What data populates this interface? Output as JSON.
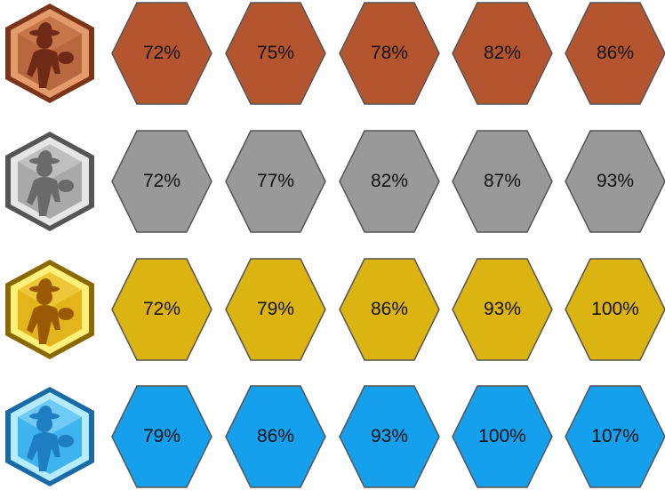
{
  "tiers": [
    {
      "name": "bronze",
      "color": "#B5552F",
      "icon": "bronze-figure-badge-icon",
      "values": [
        "72%",
        "75%",
        "78%",
        "82%",
        "86%"
      ]
    },
    {
      "name": "silver",
      "color": "#999999",
      "icon": "silver-figure-badge-icon",
      "values": [
        "72%",
        "77%",
        "82%",
        "87%",
        "93%"
      ]
    },
    {
      "name": "gold",
      "color": "#DCB411",
      "icon": "gold-figure-badge-icon",
      "values": [
        "72%",
        "79%",
        "86%",
        "93%",
        "100%"
      ]
    },
    {
      "name": "diamond",
      "color": "#14A0EC",
      "icon": "diamond-figure-badge-icon",
      "values": [
        "79%",
        "86%",
        "93%",
        "100%",
        "107%"
      ]
    }
  ]
}
